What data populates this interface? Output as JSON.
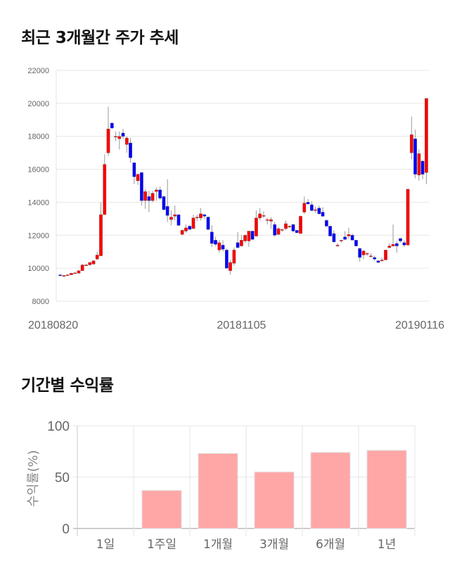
{
  "titles": {
    "trend": "최근 3개월간 주가 추세",
    "returns": "기간별 수익률"
  },
  "colors": {
    "up": "#ff0000",
    "down": "#0000ff",
    "wick": "#999999",
    "bar": "#ffa6a6",
    "grid": "#e6e6e6"
  },
  "chart_data": [
    {
      "type": "candlestick",
      "ylim": [
        8000,
        22000
      ],
      "y_ticks": [
        "8000",
        "10000",
        "12000",
        "14000",
        "16000",
        "18000",
        "20000",
        "22000"
      ],
      "x_ticks": [
        {
          "label": "20180820",
          "index": 0
        },
        {
          "label": "20181105",
          "index": 49
        },
        {
          "label": "20190116",
          "index": 99
        }
      ],
      "grid": true,
      "ohlc": [
        [
          9600,
          9620,
          9500,
          9550
        ],
        [
          9550,
          9580,
          9480,
          9560
        ],
        [
          9560,
          9620,
          9540,
          9600
        ],
        [
          9600,
          9720,
          9580,
          9700
        ],
        [
          9700,
          9750,
          9650,
          9720
        ],
        [
          9700,
          9880,
          9650,
          9850
        ],
        [
          9850,
          10250,
          9850,
          10200
        ],
        [
          10200,
          10250,
          10150,
          10200
        ],
        [
          10200,
          10380,
          10150,
          10350
        ],
        [
          10250,
          10500,
          10200,
          10450
        ],
        [
          10550,
          11000,
          10500,
          10800
        ],
        [
          10750,
          14000,
          10750,
          13250
        ],
        [
          13250,
          16900,
          13250,
          16300
        ],
        [
          17000,
          19800,
          16800,
          18450
        ],
        [
          18800,
          18850,
          18450,
          18500
        ],
        [
          18000,
          18300,
          17700,
          18000
        ],
        [
          17850,
          18300,
          17200,
          18000
        ],
        [
          18200,
          18450,
          17850,
          18000
        ],
        [
          17500,
          18000,
          17000,
          17900
        ],
        [
          17600,
          17900,
          16400,
          16700
        ],
        [
          16400,
          16400,
          15100,
          15550
        ],
        [
          15300,
          15750,
          15050,
          15700
        ],
        [
          15800,
          15850,
          13800,
          14100
        ],
        [
          14100,
          14800,
          13600,
          14650
        ],
        [
          14350,
          14700,
          13400,
          14100
        ],
        [
          14100,
          14700,
          14000,
          14550
        ],
        [
          14650,
          14900,
          14100,
          14750
        ],
        [
          14750,
          14950,
          14150,
          14250
        ],
        [
          14350,
          14350,
          13500,
          13550
        ],
        [
          13750,
          15400,
          12800,
          13200
        ],
        [
          12950,
          13500,
          12600,
          13100
        ],
        [
          13150,
          13800,
          12900,
          13250
        ],
        [
          13250,
          13250,
          12550,
          12600
        ],
        [
          12050,
          12350,
          12000,
          12300
        ],
        [
          12250,
          12650,
          12150,
          12450
        ],
        [
          12550,
          12600,
          12350,
          12350
        ],
        [
          12400,
          13250,
          12400,
          13050
        ],
        [
          13100,
          13250,
          12850,
          13100
        ],
        [
          13050,
          13650,
          12900,
          13300
        ],
        [
          13250,
          13300,
          13000,
          13150
        ],
        [
          13100,
          13150,
          12350,
          12350
        ],
        [
          12200,
          12600,
          11300,
          11500
        ],
        [
          11700,
          11900,
          11350,
          11450
        ],
        [
          11100,
          11700,
          10950,
          11550
        ],
        [
          11400,
          11700,
          11000,
          11150
        ],
        [
          11100,
          11200,
          10000,
          10000
        ],
        [
          9850,
          10500,
          9600,
          10350
        ],
        [
          10300,
          11250,
          10150,
          11100
        ],
        [
          11550,
          12200,
          11200,
          11250
        ],
        [
          11350,
          12000,
          11300,
          11700
        ],
        [
          11650,
          12050,
          11550,
          12000
        ],
        [
          11650,
          12250,
          11300,
          12250
        ],
        [
          12250,
          12250,
          11700,
          11750
        ],
        [
          11950,
          13500,
          11900,
          13050
        ],
        [
          13050,
          13650,
          12900,
          13300
        ],
        [
          13200,
          13450,
          13050,
          13200
        ],
        [
          12900,
          13050,
          12650,
          12950
        ],
        [
          12850,
          13100,
          12400,
          12950
        ],
        [
          12650,
          12800,
          11900,
          12000
        ],
        [
          12050,
          12500,
          12000,
          12400
        ],
        [
          12350,
          12400,
          12200,
          12350
        ],
        [
          12400,
          12900,
          12300,
          12700
        ],
        [
          12550,
          12600,
          12450,
          12550
        ],
        [
          12650,
          12700,
          12200,
          12250
        ],
        [
          12300,
          12300,
          12150,
          12150
        ],
        [
          12100,
          13200,
          12100,
          13150
        ],
        [
          13400,
          14350,
          13300,
          13950
        ],
        [
          14000,
          14200,
          13850,
          13900
        ],
        [
          13850,
          14050,
          13450,
          13500
        ],
        [
          13550,
          13750,
          13350,
          13550
        ],
        [
          13650,
          13800,
          13250,
          13300
        ],
        [
          13400,
          13700,
          13100,
          13150
        ],
        [
          12900,
          12950,
          12500,
          12550
        ],
        [
          12550,
          12550,
          11950,
          11950
        ],
        [
          12100,
          12300,
          11550,
          11600
        ],
        [
          11400,
          11500,
          11300,
          11400
        ],
        [
          11650,
          11700,
          11550,
          11700
        ],
        [
          11900,
          12250,
          11700,
          11750
        ],
        [
          11950,
          12450,
          11800,
          12050
        ],
        [
          12000,
          12100,
          11700,
          11700
        ],
        [
          11700,
          11700,
          11300,
          11350
        ],
        [
          11200,
          11250,
          10400,
          10650
        ],
        [
          10800,
          11100,
          10550,
          11050
        ],
        [
          10850,
          10950,
          10750,
          10900
        ],
        [
          10750,
          10900,
          10650,
          10750
        ],
        [
          10650,
          10750,
          10450,
          10550
        ],
        [
          10450,
          10500,
          10300,
          10350
        ],
        [
          10500,
          10650,
          10400,
          10500
        ],
        [
          10500,
          11100,
          10500,
          11100
        ],
        [
          11250,
          11500,
          11200,
          11350
        ],
        [
          11350,
          12650,
          11300,
          11450
        ],
        [
          11500,
          11650,
          10950,
          11350
        ],
        [
          11800,
          11850,
          11550,
          11650
        ],
        [
          11550,
          11700,
          11300,
          11400
        ],
        [
          11400,
          14800,
          11400,
          14800
        ],
        [
          17000,
          19200,
          16600,
          18100
        ],
        [
          17850,
          18400,
          15450,
          15700
        ],
        [
          15650,
          17200,
          15300,
          16950
        ],
        [
          16500,
          16500,
          15400,
          15700
        ],
        [
          15800,
          20300,
          15100,
          20300
        ]
      ]
    },
    {
      "type": "bar",
      "ylabel": "수익률(%)",
      "ylim": [
        0,
        100
      ],
      "y_ticks": [
        "0",
        "50",
        "100"
      ],
      "categories": [
        "1일",
        "1주일",
        "1개월",
        "3개월",
        "6개월",
        "1년"
      ],
      "values": [
        0,
        37,
        73,
        55,
        74,
        76
      ],
      "grid": true
    }
  ]
}
